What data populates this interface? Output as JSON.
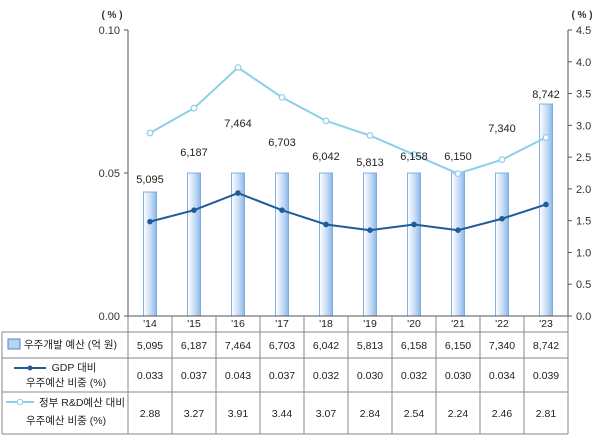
{
  "chart_data": {
    "type": "bar",
    "categories": [
      "'14",
      "'15",
      "'16",
      "'17",
      "'18",
      "'19",
      "'20",
      "'21",
      "'22",
      "'23"
    ],
    "left_axis": {
      "unit_label": "( % )",
      "ticks": [
        "0.00",
        "0.05",
        "0.10"
      ],
      "ylim": [
        0,
        0.1
      ]
    },
    "right_axis": {
      "unit_label": "( % )",
      "ticks": [
        "0.0",
        "0.5",
        "1.0",
        "1.5",
        "2.0",
        "2.5",
        "3.0",
        "3.5",
        "4.0",
        "4.5"
      ],
      "ylim": [
        0,
        4.5
      ]
    },
    "bar_range_on_left_axis": [
      0,
      0.05
    ],
    "series": [
      {
        "name": "우주개발 예산 (억 원)",
        "kind": "bar",
        "color": "#9ec3ee",
        "values": [
          5095,
          6187,
          7464,
          6703,
          6042,
          5813,
          6158,
          6150,
          7340,
          8742
        ],
        "labels": [
          "5,095",
          "6,187",
          "7,464",
          "6,703",
          "6,042",
          "5,813",
          "6,158",
          "6,150",
          "7,340",
          "8,742"
        ]
      },
      {
        "name": "GDP 대비\n우주예산 비중 (%)",
        "kind": "line",
        "axis": "left",
        "color": "#1f5c99",
        "values": [
          0.033,
          0.037,
          0.043,
          0.037,
          0.032,
          0.03,
          0.032,
          0.03,
          0.034,
          0.039
        ],
        "labels": [
          "0.033",
          "0.037",
          "0.043",
          "0.037",
          "0.032",
          "0.030",
          "0.032",
          "0.030",
          "0.034",
          "0.039"
        ]
      },
      {
        "name": "정부 R&D예산 대비\n우주예산 비중 (%)",
        "kind": "line",
        "axis": "right",
        "color": "#8ecfe8",
        "values": [
          2.88,
          3.27,
          3.91,
          3.44,
          3.07,
          2.84,
          2.54,
          2.24,
          2.46,
          2.81
        ],
        "labels": [
          "2.88",
          "3.27",
          "3.91",
          "3.44",
          "3.07",
          "2.84",
          "2.54",
          "2.24",
          "2.46",
          "2.81"
        ]
      }
    ],
    "grid": false,
    "legend_placement": "bottom-table"
  }
}
